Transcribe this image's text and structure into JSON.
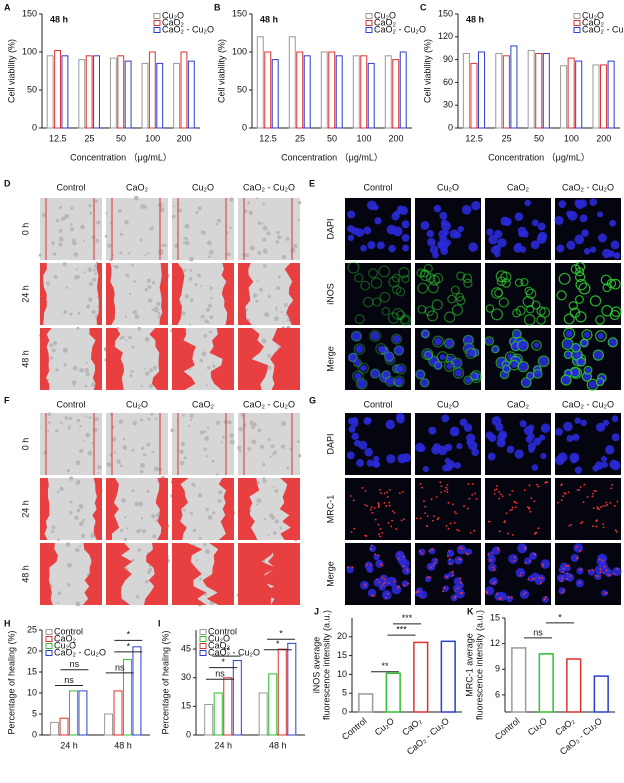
{
  "chart_data": [
    {
      "type": "bar",
      "label": "A",
      "annotation": "48 h",
      "ylabel": "Cell viability (%)",
      "xlabel": "Concentration （μg/mL）",
      "categories": [
        "12.5",
        "25",
        "50",
        "100",
        "200"
      ],
      "series": [
        {
          "name": "Cu₂O",
          "color": "#9a9a9a",
          "values": [
            95,
            90,
            92,
            85,
            85
          ]
        },
        {
          "name": "CaO₂",
          "color": "#e03030",
          "values": [
            102,
            95,
            95,
            100,
            100
          ]
        },
        {
          "name": "CaO₂ - Cu₂O",
          "color": "#2a3fd0",
          "values": [
            95,
            95,
            88,
            85,
            88
          ]
        }
      ],
      "ylim": [
        0,
        150
      ],
      "yticks": [
        0,
        50,
        100,
        150
      ],
      "legend": "top-right"
    },
    {
      "type": "bar",
      "label": "B",
      "annotation": "48 h",
      "ylabel": "Cell viability (%)",
      "xlabel": "Concentration （μg/mL）",
      "categories": [
        "12.5",
        "25",
        "50",
        "100",
        "200"
      ],
      "series": [
        {
          "name": "Cu₂O",
          "color": "#9a9a9a",
          "values": [
            120,
            120,
            100,
            95,
            95
          ]
        },
        {
          "name": "CaO₂",
          "color": "#e03030",
          "values": [
            100,
            100,
            100,
            95,
            90
          ]
        },
        {
          "name": "CaO₂ - Cu₂O",
          "color": "#2a3fd0",
          "values": [
            90,
            95,
            95,
            85,
            100
          ]
        }
      ],
      "ylim": [
        0,
        150
      ],
      "yticks": [
        0,
        50,
        100,
        150
      ],
      "legend": "top-right"
    },
    {
      "type": "bar",
      "label": "C",
      "annotation": "48 h",
      "ylabel": "Cell viability (%)",
      "xlabel": "Concentration （μg/mL）",
      "categories": [
        "12.5",
        "25",
        "50",
        "100",
        "200"
      ],
      "series": [
        {
          "name": "Cu₂O",
          "color": "#9a9a9a",
          "values": [
            98,
            98,
            102,
            82,
            83
          ]
        },
        {
          "name": "CaO₂",
          "color": "#e03030",
          "values": [
            85,
            95,
            98,
            92,
            83
          ]
        },
        {
          "name": "CaO₂ - Cu₂O",
          "color": "#2a3fd0",
          "values": [
            100,
            108,
            98,
            88,
            88
          ]
        }
      ],
      "ylim": [
        0,
        150
      ],
      "yticks": [
        0,
        30,
        60,
        90,
        120,
        150
      ],
      "legend": "top-right"
    },
    {
      "type": "bar",
      "label": "H",
      "ylabel": "Percentage of healing (%)",
      "categories": [
        "24 h",
        "48 h"
      ],
      "series": [
        {
          "name": "Control",
          "color": "#9a9a9a",
          "values": [
            3,
            5
          ]
        },
        {
          "name": "CaO₂",
          "color": "#e03030",
          "values": [
            4,
            10.5
          ]
        },
        {
          "name": "Cu₂O",
          "color": "#30c030",
          "values": [
            10.5,
            18
          ]
        },
        {
          "name": "CaO₂ - Cu₂O",
          "color": "#2a3fd0",
          "values": [
            10.5,
            21
          ]
        }
      ],
      "ylim": [
        0,
        25
      ],
      "yticks": [
        0,
        5,
        10,
        15,
        20,
        25
      ],
      "legend": "top-left",
      "annotations": [
        "ns",
        "ns",
        "ns",
        "*",
        "*"
      ]
    },
    {
      "type": "bar",
      "label": "I",
      "ylabel": "Percentage of healing (%)",
      "categories": [
        "24 h",
        "48 h"
      ],
      "series": [
        {
          "name": "Control",
          "color": "#9a9a9a",
          "values": [
            16,
            22
          ]
        },
        {
          "name": "Cu₂O",
          "color": "#30c030",
          "values": [
            22,
            32
          ]
        },
        {
          "name": "CaO₂",
          "color": "#e03030",
          "values": [
            30,
            45
          ]
        },
        {
          "name": "CaO₂ - Cu₂O",
          "color": "#2a3fd0",
          "values": [
            39,
            48
          ]
        }
      ],
      "ylim": [
        0,
        55
      ],
      "yticks": [
        0,
        15,
        30,
        45
      ],
      "legend": "top-left",
      "annotations": [
        "ns",
        "*",
        "**",
        "*",
        "*"
      ]
    },
    {
      "type": "bar",
      "label": "J",
      "ylabel": [
        "iNOS average",
        "fluorescence intensity (a.u.)"
      ],
      "categories": [
        "Control",
        "Cu₂O",
        "CaO₂",
        "CaO₂ - Cu₂O"
      ],
      "values": [
        4.8,
        10.3,
        18.5,
        18.8
      ],
      "colors": [
        "#9a9a9a",
        "#30c030",
        "#e03030",
        "#2a3fd0"
      ],
      "ylim": [
        0,
        25
      ],
      "yticks": [
        0,
        5,
        10,
        15,
        20
      ],
      "annotations": [
        "**",
        "***",
        "***"
      ]
    },
    {
      "type": "bar",
      "label": "K",
      "ylabel": [
        "MRC-1 average",
        "fluorescence intensity (a.u.)"
      ],
      "categories": [
        "Control",
        "Cu₂O",
        "CaO₂",
        "CaO₂ - Cu₂O"
      ],
      "values": [
        11.5,
        10.8,
        10.2,
        8.2
      ],
      "colors": [
        "#9a9a9a",
        "#30c030",
        "#e03030",
        "#2a3fd0"
      ],
      "ylim": [
        4,
        15
      ],
      "yticks": [
        6,
        9,
        12,
        15
      ],
      "annotations": [
        "ns",
        "*"
      ]
    }
  ],
  "panels": [
    {
      "label": "D",
      "columns": [
        "Control",
        "CaO₂",
        "Cu₂O",
        "CaO₂ - Cu₂O"
      ],
      "rows": [
        "0 h",
        "24 h",
        "48 h"
      ]
    },
    {
      "label": "E",
      "columns": [
        "Control",
        "Cu₂O",
        "CaO₂",
        "CaO₂ - Cu₂O"
      ],
      "rows": [
        "DAPI",
        "iNOS",
        "Merge"
      ]
    },
    {
      "label": "F",
      "columns": [
        "Control",
        "Cu₂O",
        "CaO₂",
        "CaO₂ - Cu₂O"
      ],
      "rows": [
        "0 h",
        "24 h",
        "48 h"
      ]
    },
    {
      "label": "G",
      "columns": [
        "Control",
        "Cu₂O",
        "CaO₂",
        "CaO₂ - Cu₂O"
      ],
      "rows": [
        "DAPI",
        "MRC-1",
        "Merge"
      ]
    }
  ]
}
